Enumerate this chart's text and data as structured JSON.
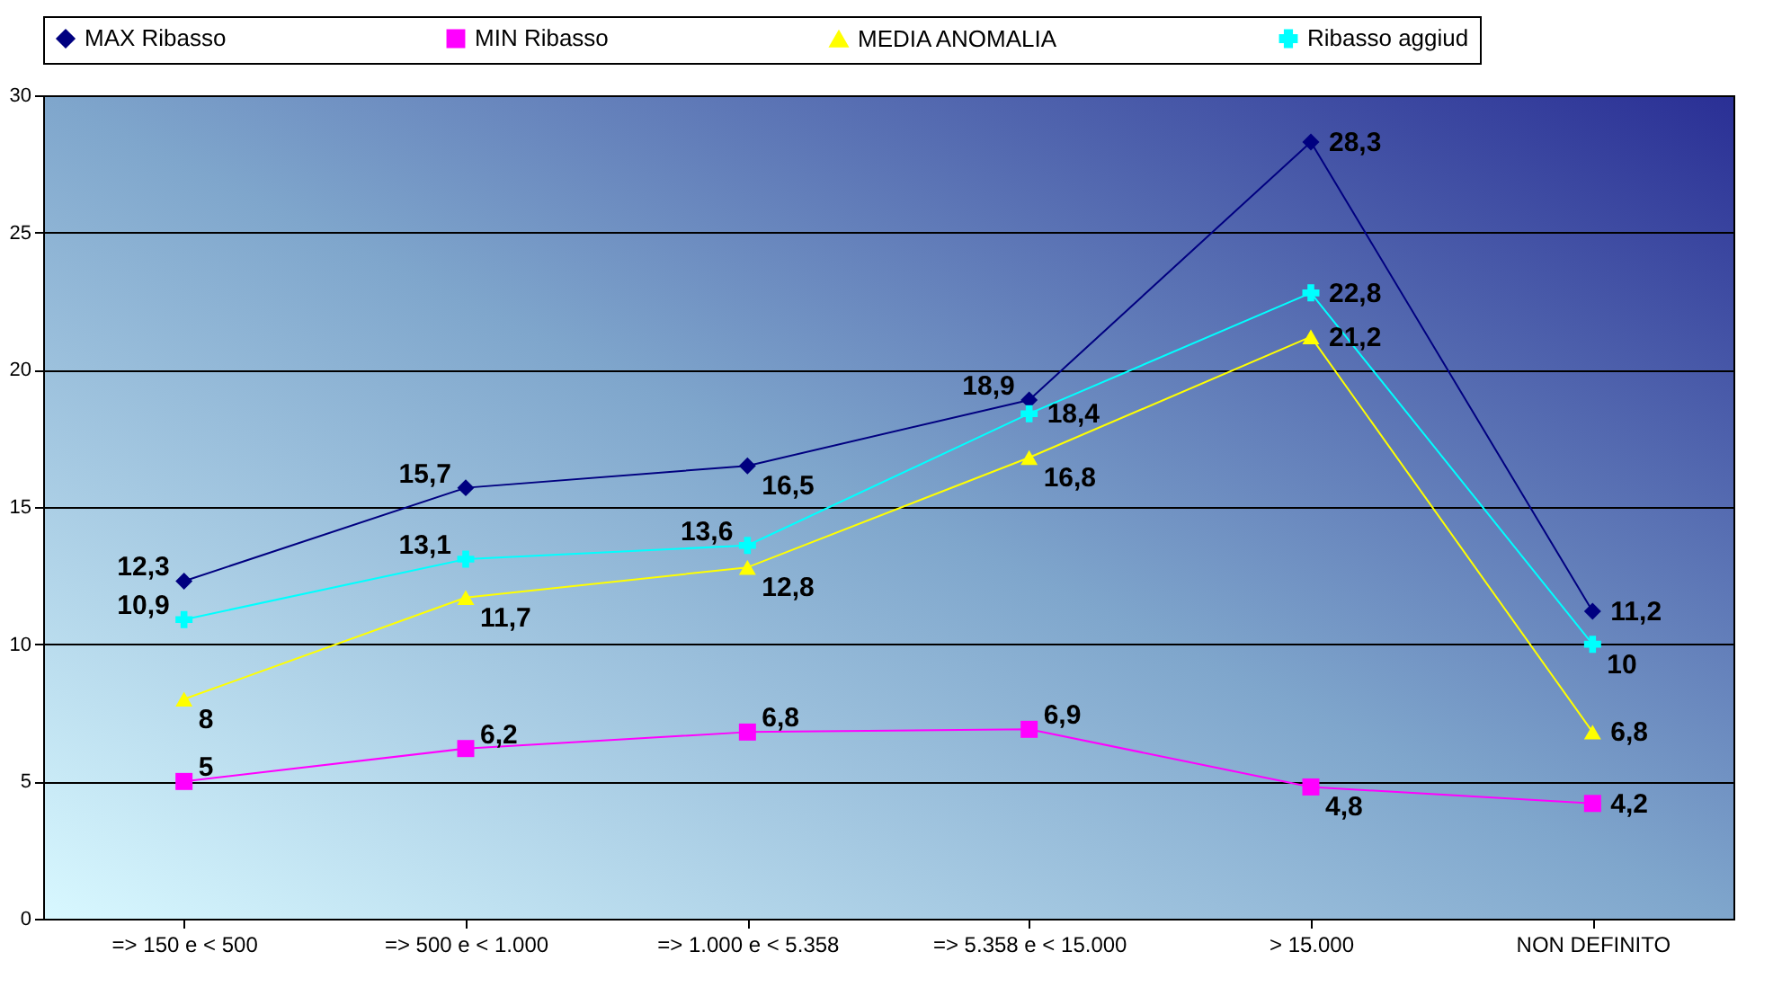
{
  "chart_data": {
    "type": "line",
    "categories": [
      "=>   150 e < 500",
      "=>   500 e < 1.000",
      "=> 1.000 e < 5.358",
      "=> 5.358 e < 15.000",
      "> 15.000",
      "NON DEFINITO"
    ],
    "ylim": [
      0,
      30
    ],
    "yticks": [
      0,
      5,
      10,
      15,
      20,
      25,
      30
    ],
    "grid": "y",
    "legend": "top",
    "series": [
      {
        "name": "MAX Ribasso",
        "color": "#000080",
        "marker": "diamond",
        "values": [
          12.3,
          15.7,
          16.5,
          18.9,
          28.3,
          11.2
        ],
        "value_labels": [
          "12,3",
          "15,7",
          "16,5",
          "18,9",
          "28,3",
          "11,2"
        ]
      },
      {
        "name": "MIN Ribasso",
        "color": "#ff00ff",
        "marker": "square",
        "values": [
          5,
          6.2,
          6.8,
          6.9,
          4.8,
          4.2
        ],
        "value_labels": [
          "5",
          "6,2",
          "6,8",
          "6,9",
          "4,8",
          "4,2"
        ]
      },
      {
        "name": "MEDIA ANOMALIA",
        "color": "#ffff00",
        "marker": "triangle",
        "values": [
          8,
          11.7,
          12.8,
          16.8,
          21.2,
          6.8
        ],
        "value_labels": [
          "8",
          "11,7",
          "12,8",
          "16,8",
          "21,2",
          "6,8"
        ]
      },
      {
        "name": "Ribasso aggiud",
        "color": "#00ffff",
        "marker": "cross",
        "values": [
          10.9,
          13.1,
          13.6,
          18.4,
          22.8,
          10
        ],
        "value_labels": [
          "10,9",
          "13,1",
          "13,6",
          "18,4",
          "22,8",
          "10"
        ]
      }
    ]
  }
}
